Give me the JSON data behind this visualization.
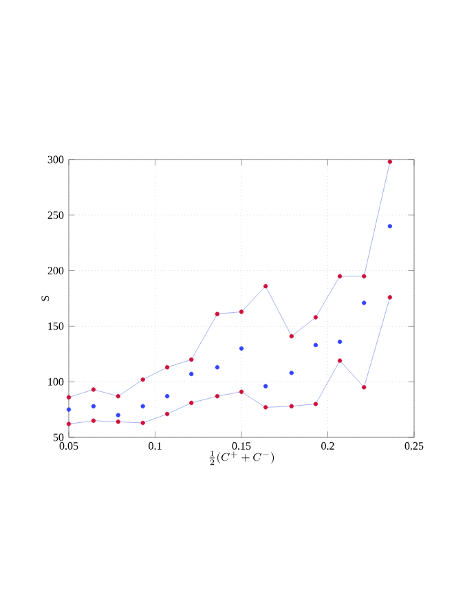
{
  "chart_data": {
    "type": "line",
    "xlabel": "\\frac{1}{2}(C^+ + C^-)",
    "ylabel": "S",
    "x": [
      0.05,
      0.0643,
      0.0786,
      0.0929,
      0.107,
      0.121,
      0.136,
      0.15,
      0.164,
      0.179,
      0.193,
      0.207,
      0.221,
      0.236
    ],
    "series": [
      {
        "color": "#8c9ef0",
        "colors": [
          "#d0103a",
          "#d0103a",
          "#d0103a",
          "#d0103a",
          "#d0103a",
          "#d0103a",
          "#d0103a",
          "#d0103a",
          "#d0103a",
          "#d0103a",
          "#d0103a",
          "#d0103a",
          "#d0103a",
          "#d0103a"
        ],
        "values": [
          86,
          93,
          87,
          102,
          113,
          120,
          161,
          163,
          186,
          141,
          158,
          195,
          195,
          298
        ]
      },
      {
        "type": "scatter",
        "color": "#3344ff",
        "values": [
          75,
          78,
          70,
          78,
          87,
          107,
          113,
          130,
          96,
          108,
          133,
          136,
          171,
          240
        ]
      },
      {
        "color": "#8c9ef0",
        "colors": [
          "#d0103a",
          "#d0103a",
          "#d0103a",
          "#d0103a",
          "#d0103a",
          "#d0103a",
          "#d0103a",
          "#d0103a",
          "#d0103a",
          "#d0103a",
          "#d0103a",
          "#d0103a",
          "#d0103a",
          "#d0103a"
        ],
        "values": [
          62,
          65,
          64,
          63,
          71,
          81,
          87,
          91,
          77,
          78,
          80,
          119,
          95,
          176
        ]
      }
    ],
    "xlim": [
      0.05,
      0.25
    ],
    "ylim": [
      50,
      300
    ],
    "xticks": [
      0.05,
      0.1,
      0.15,
      0.2,
      0.25
    ],
    "yticks": [
      50,
      100,
      150,
      200,
      250,
      300
    ],
    "grid": true,
    "marker": "circle"
  }
}
